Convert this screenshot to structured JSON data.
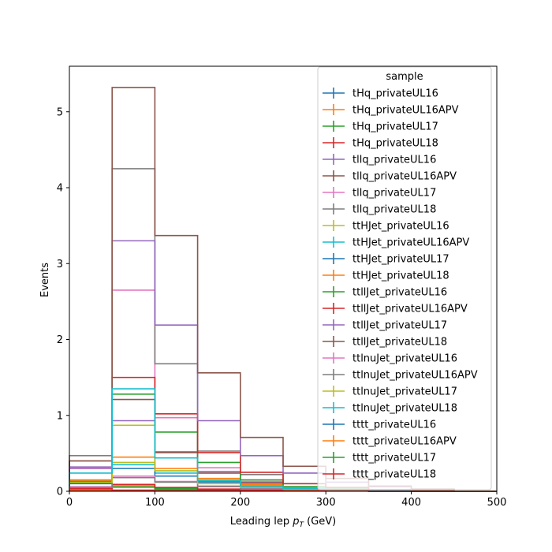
{
  "chart_data": {
    "type": "histogram-step",
    "xlabel_main": "Leading lep ",
    "xlabel_math": "p",
    "xlabel_sub": "T",
    "xlabel_unit": " (GeV)",
    "ylabel": "Events",
    "xlim": [
      0,
      500
    ],
    "ylim": [
      0,
      5.6
    ],
    "xticks": [
      0,
      100,
      200,
      300,
      400,
      500
    ],
    "yticks": [
      0,
      1,
      2,
      3,
      4,
      5
    ],
    "bin_edges": [
      0,
      50,
      100,
      150,
      200,
      250,
      300,
      350,
      400,
      450,
      500
    ],
    "legend_title": "sample",
    "legend_position": "top-right",
    "series": [
      {
        "name": "tHq_privateUL16",
        "color": "#1f77b4",
        "values": [
          0.02,
          0.05,
          0.03,
          0.02,
          0.01,
          0.005,
          0.003,
          0.002,
          0.001,
          0.0
        ]
      },
      {
        "name": "tHq_privateUL16APV",
        "color": "#ff7f0e",
        "values": [
          0.02,
          0.05,
          0.03,
          0.02,
          0.01,
          0.005,
          0.003,
          0.002,
          0.001,
          0.0
        ]
      },
      {
        "name": "tHq_privateUL17",
        "color": "#2ca02c",
        "values": [
          0.03,
          0.07,
          0.04,
          0.02,
          0.01,
          0.006,
          0.003,
          0.002,
          0.001,
          0.0
        ]
      },
      {
        "name": "tHq_privateUL18",
        "color": "#d62728",
        "values": [
          0.04,
          0.09,
          0.05,
          0.03,
          0.015,
          0.008,
          0.004,
          0.002,
          0.001,
          0.0
        ]
      },
      {
        "name": "tllq_privateUL16",
        "color": "#9467bd",
        "values": [
          0.3,
          0.93,
          0.52,
          0.26,
          0.12,
          0.05,
          0.03,
          0.015,
          0.005,
          0.0
        ]
      },
      {
        "name": "tllq_privateUL16APV",
        "color": "#8c564b",
        "values": [
          0.4,
          1.21,
          0.51,
          0.24,
          0.11,
          0.05,
          0.03,
          0.015,
          0.005,
          0.0
        ]
      },
      {
        "name": "tllq_privateUL17",
        "color": "#e377c2",
        "values": [
          0.31,
          2.65,
          0.97,
          0.31,
          0.13,
          0.06,
          0.03,
          0.015,
          0.005,
          0.0
        ]
      },
      {
        "name": "tllq_privateUL18",
        "color": "#7f7f7f",
        "values": [
          0.47,
          4.25,
          1.68,
          0.53,
          0.22,
          0.1,
          0.05,
          0.02,
          0.01,
          0.0
        ]
      },
      {
        "name": "ttHJet_privateUL16",
        "color": "#bcbd22",
        "values": [
          0.14,
          0.38,
          0.27,
          0.15,
          0.08,
          0.04,
          0.02,
          0.01,
          0.005,
          0.0
        ]
      },
      {
        "name": "ttHJet_privateUL16APV",
        "color": "#17becf",
        "values": [
          0.12,
          0.35,
          0.24,
          0.13,
          0.07,
          0.035,
          0.018,
          0.01,
          0.005,
          0.0
        ]
      },
      {
        "name": "ttHJet_privateUL17",
        "color": "#1f77b4",
        "values": [
          0.1,
          0.3,
          0.2,
          0.12,
          0.06,
          0.03,
          0.015,
          0.008,
          0.004,
          0.0
        ]
      },
      {
        "name": "ttHJet_privateUL18",
        "color": "#ff7f0e",
        "values": [
          0.15,
          0.45,
          0.3,
          0.17,
          0.09,
          0.045,
          0.022,
          0.012,
          0.006,
          0.0
        ]
      },
      {
        "name": "ttllJet_privateUL16",
        "color": "#2ca02c",
        "values": [
          0.11,
          1.28,
          0.78,
          0.38,
          0.15,
          0.06,
          0.03,
          0.015,
          0.005,
          0.0
        ]
      },
      {
        "name": "ttllJet_privateUL16APV",
        "color": "#d62728",
        "values": [
          0.13,
          1.5,
          1.02,
          0.51,
          0.25,
          0.1,
          0.05,
          0.02,
          0.01,
          0.0
        ]
      },
      {
        "name": "ttllJet_privateUL17",
        "color": "#9467bd",
        "values": [
          0.32,
          3.3,
          2.19,
          0.93,
          0.47,
          0.24,
          0.12,
          0.06,
          0.03,
          0.0
        ]
      },
      {
        "name": "ttllJet_privateUL18",
        "color": "#8c564b",
        "values": [
          0.4,
          5.32,
          3.37,
          1.56,
          0.71,
          0.33,
          0.17,
          0.07,
          0.03,
          0.0
        ]
      },
      {
        "name": "ttlnuJet_privateUL16",
        "color": "#e377c2",
        "values": [
          0.06,
          0.2,
          0.13,
          0.07,
          0.035,
          0.018,
          0.01,
          0.005,
          0.002,
          0.0
        ]
      },
      {
        "name": "ttlnuJet_privateUL16APV",
        "color": "#7f7f7f",
        "values": [
          0.05,
          0.18,
          0.12,
          0.06,
          0.03,
          0.015,
          0.008,
          0.004,
          0.002,
          0.0
        ]
      },
      {
        "name": "ttlnuJet_privateUL17",
        "color": "#bcbd22",
        "values": [
          0.12,
          0.87,
          0.27,
          0.1,
          0.05,
          0.025,
          0.012,
          0.006,
          0.003,
          0.0
        ]
      },
      {
        "name": "ttlnuJet_privateUL18",
        "color": "#17becf",
        "values": [
          0.24,
          1.35,
          0.44,
          0.14,
          0.07,
          0.035,
          0.018,
          0.008,
          0.004,
          0.0
        ]
      },
      {
        "name": "tttt_privateUL16",
        "color": "#1f77b4",
        "values": [
          0.003,
          0.01,
          0.012,
          0.01,
          0.008,
          0.005,
          0.003,
          0.002,
          0.001,
          0.0
        ]
      },
      {
        "name": "tttt_privateUL16APV",
        "color": "#ff7f0e",
        "values": [
          0.003,
          0.01,
          0.012,
          0.01,
          0.008,
          0.005,
          0.003,
          0.002,
          0.001,
          0.0
        ]
      },
      {
        "name": "tttt_privateUL17",
        "color": "#2ca02c",
        "values": [
          0.004,
          0.012,
          0.014,
          0.012,
          0.009,
          0.006,
          0.004,
          0.002,
          0.001,
          0.0
        ]
      },
      {
        "name": "tttt_privateUL18",
        "color": "#d62728",
        "values": [
          0.005,
          0.015,
          0.018,
          0.015,
          0.011,
          0.007,
          0.004,
          0.002,
          0.001,
          0.0
        ]
      }
    ]
  }
}
